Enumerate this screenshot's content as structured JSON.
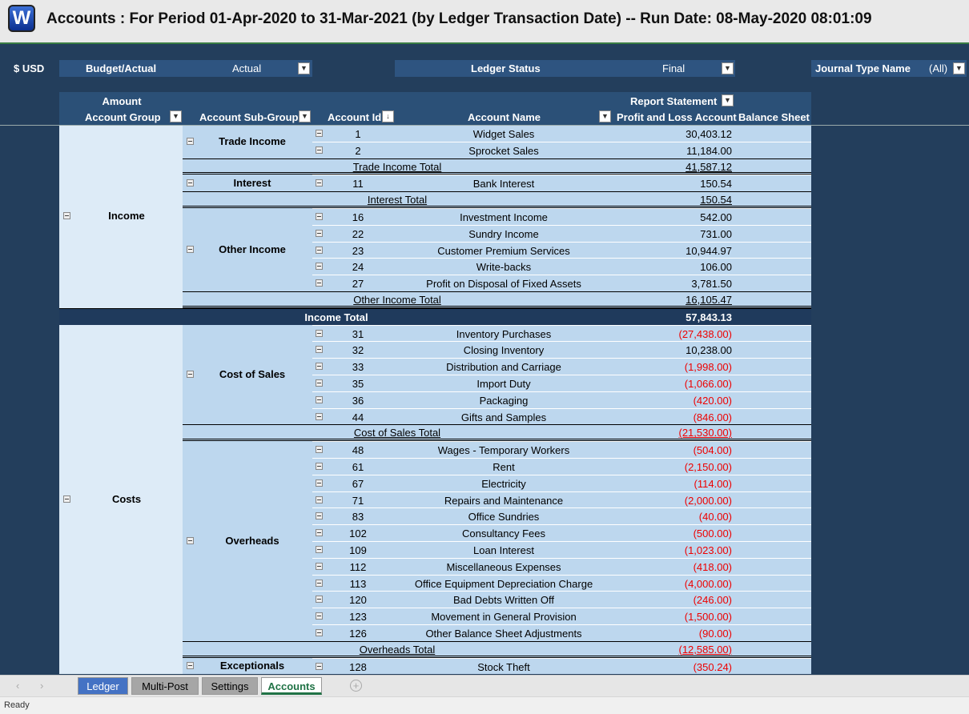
{
  "header": {
    "logo": "W",
    "title": "Accounts : For Period 01-Apr-2020 to 31-Mar-2021 (by Ledger Transaction Date) -- Run Date: 08-May-2020 08:01:09"
  },
  "filters": {
    "currency": "$ USD",
    "budget_actual": {
      "label": "Budget/Actual",
      "value": "Actual"
    },
    "ledger_status": {
      "label": "Ledger Status",
      "value": "Final"
    },
    "journal_type": {
      "label": "Journal Type Name",
      "value": "(All)"
    }
  },
  "column_headers": {
    "values_label": "Amount",
    "column_field": "Report Statement",
    "account_group": "Account Group",
    "account_sub_group": "Account Sub-Group",
    "account_id": "Account Id",
    "account_name": "Account Name",
    "profit_and_loss": "Profit and Loss Account",
    "balance_sheet": "Balance Sheet"
  },
  "groups": [
    {
      "name": "Income",
      "total_label": "Income Total",
      "total": "57,843.13",
      "subgroups": [
        {
          "name": "Trade Income",
          "total_label": "Trade Income Total",
          "total": "41,587.12",
          "accounts": [
            {
              "id": 1,
              "name": "Widget Sales",
              "amount": "30,403.12"
            },
            {
              "id": 2,
              "name": "Sprocket Sales",
              "amount": "11,184.00"
            }
          ]
        },
        {
          "name": "Interest",
          "total_label": "Interest Total",
          "total": "150.54",
          "accounts": [
            {
              "id": 11,
              "name": "Bank Interest",
              "amount": "150.54"
            }
          ]
        },
        {
          "name": "Other Income",
          "total_label": "Other Income Total",
          "total": "16,105.47",
          "accounts": [
            {
              "id": 16,
              "name": "Investment Income",
              "amount": "542.00"
            },
            {
              "id": 22,
              "name": "Sundry Income",
              "amount": "731.00"
            },
            {
              "id": 23,
              "name": "Customer Premium Services",
              "amount": "10,944.97"
            },
            {
              "id": 24,
              "name": "Write-backs",
              "amount": "106.00"
            },
            {
              "id": 27,
              "name": "Profit on Disposal of Fixed Assets",
              "amount": "3,781.50"
            }
          ]
        }
      ]
    },
    {
      "name": "Costs",
      "subgroups": [
        {
          "name": "Cost of Sales",
          "total_label": "Cost of Sales Total",
          "total": "(21,530.00)",
          "accounts": [
            {
              "id": 31,
              "name": "Inventory Purchases",
              "amount": "(27,438.00)"
            },
            {
              "id": 32,
              "name": "Closing Inventory",
              "amount": "10,238.00"
            },
            {
              "id": 33,
              "name": "Distribution and Carriage",
              "amount": "(1,998.00)"
            },
            {
              "id": 35,
              "name": "Import Duty",
              "amount": "(1,066.00)"
            },
            {
              "id": 36,
              "name": "Packaging",
              "amount": "(420.00)"
            },
            {
              "id": 44,
              "name": "Gifts and Samples",
              "amount": "(846.00)"
            }
          ]
        },
        {
          "name": "Overheads",
          "total_label": "Overheads Total",
          "total": "(12,585.00)",
          "accounts": [
            {
              "id": 48,
              "name": "Wages - Temporary Workers",
              "amount": "(504.00)"
            },
            {
              "id": 61,
              "name": "Rent",
              "amount": "(2,150.00)"
            },
            {
              "id": 67,
              "name": "Electricity",
              "amount": "(114.00)"
            },
            {
              "id": 71,
              "name": "Repairs and Maintenance",
              "amount": "(2,000.00)"
            },
            {
              "id": 83,
              "name": "Office Sundries",
              "amount": "(40.00)"
            },
            {
              "id": 102,
              "name": "Consultancy Fees",
              "amount": "(500.00)"
            },
            {
              "id": 109,
              "name": "Loan Interest",
              "amount": "(1,023.00)"
            },
            {
              "id": 112,
              "name": "Miscellaneous Expenses",
              "amount": "(418.00)"
            },
            {
              "id": 113,
              "name": "Office Equipment Depreciation Charge",
              "amount": "(4,000.00)"
            },
            {
              "id": 120,
              "name": "Bad Debts Written Off",
              "amount": "(246.00)"
            },
            {
              "id": 123,
              "name": "Movement in General Provision",
              "amount": "(1,500.00)"
            },
            {
              "id": 126,
              "name": "Other Balance Sheet Adjustments",
              "amount": "(90.00)"
            }
          ]
        },
        {
          "name": "Exceptionals",
          "accounts": [
            {
              "id": 128,
              "name": "Stock Theft",
              "amount": "(350.24)"
            }
          ]
        }
      ]
    }
  ],
  "sheet_tabs": [
    "Ledger",
    "Multi-Post",
    "Settings",
    "Accounts"
  ],
  "active_tab": 3,
  "status": "Ready"
}
